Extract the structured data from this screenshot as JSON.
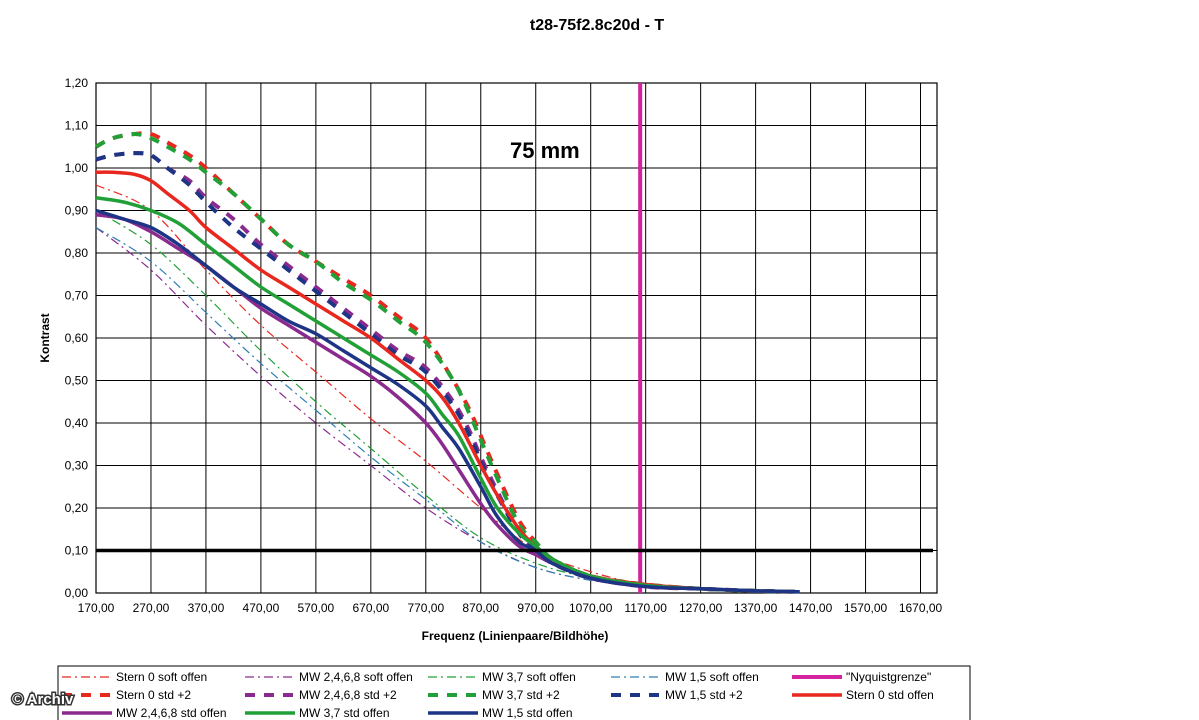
{
  "chart_data": {
    "type": "line",
    "title": "t28-75f2.8c20d - T",
    "xlabel": "Frequenz (Linienpaare/Bildhöhe)",
    "ylabel": "Kontrast",
    "xlim": [
      170,
      1700
    ],
    "ylim": [
      0,
      1.2
    ],
    "x_ticks": [
      "170,00",
      "270,00",
      "370,00",
      "470,00",
      "570,00",
      "670,00",
      "770,00",
      "870,00",
      "970,00",
      "1070,00",
      "1170,00",
      "1270,00",
      "1370,00",
      "1470,00",
      "1570,00",
      "1670,00"
    ],
    "y_ticks": [
      "0,00",
      "0,10",
      "0,20",
      "0,30",
      "0,40",
      "0,50",
      "0,60",
      "0,70",
      "0,80",
      "0,90",
      "1,00",
      "1,10",
      "1,20"
    ],
    "grid": true,
    "annotation": "75 mm",
    "reference_line_y": 0.1,
    "nyquist_x": 1160,
    "legend_position": "bottom",
    "series": [
      {
        "name": "Stern 0 soft offen",
        "color": "#e8271f",
        "style": "dashdot",
        "width": 1.2,
        "x": [
          170,
          270,
          370,
          470,
          570,
          670,
          770,
          870,
          970,
          1070,
          1170,
          1270,
          1370,
          1450
        ],
        "y": [
          0.96,
          0.9,
          0.76,
          0.63,
          0.52,
          0.41,
          0.31,
          0.2,
          0.1,
          0.05,
          0.02,
          0.01,
          0.005,
          0.003
        ]
      },
      {
        "name": "MW 2,4,6,8 soft offen",
        "color": "#8b2a8e",
        "style": "dashdot",
        "width": 1.2,
        "x": [
          170,
          270,
          370,
          470,
          570,
          670,
          770,
          870,
          970,
          1070,
          1170,
          1270,
          1370,
          1450
        ],
        "y": [
          0.86,
          0.76,
          0.63,
          0.51,
          0.4,
          0.3,
          0.2,
          0.12,
          0.06,
          0.03,
          0.015,
          0.01,
          0.005,
          0.003
        ]
      },
      {
        "name": "MW 3,7 soft offen",
        "color": "#22a038",
        "style": "dashdot",
        "width": 1.2,
        "x": [
          170,
          270,
          370,
          470,
          570,
          670,
          770,
          870,
          970,
          1070,
          1170,
          1270,
          1370,
          1450
        ],
        "y": [
          0.9,
          0.82,
          0.7,
          0.57,
          0.45,
          0.34,
          0.23,
          0.13,
          0.07,
          0.035,
          0.018,
          0.01,
          0.005,
          0.003
        ]
      },
      {
        "name": "MW 1,5 soft offen",
        "color": "#2e7fb5",
        "style": "dashdot",
        "width": 1.2,
        "x": [
          170,
          270,
          370,
          470,
          570,
          670,
          770,
          870,
          970,
          1070,
          1170,
          1270,
          1370,
          1450
        ],
        "y": [
          0.86,
          0.78,
          0.66,
          0.54,
          0.43,
          0.32,
          0.22,
          0.12,
          0.06,
          0.03,
          0.015,
          0.01,
          0.005,
          0.003
        ]
      },
      {
        "name": "\"Nyquistgrenze\"",
        "color": "#d4239f",
        "style": "solid",
        "width": 4,
        "x": [
          1160,
          1160
        ],
        "y": [
          0,
          1.2
        ]
      },
      {
        "name": "Stern 0 std +2",
        "color": "#e8271f",
        "style": "dashed",
        "width": 4,
        "x": [
          170,
          200,
          240,
          270,
          300,
          340,
          370,
          420,
          470,
          520,
          570,
          620,
          670,
          720,
          770,
          820,
          850,
          870,
          900,
          940,
          970,
          1000,
          1070,
          1170,
          1270,
          1370,
          1450
        ],
        "y": [
          1.05,
          1.07,
          1.08,
          1.08,
          1.06,
          1.03,
          1.0,
          0.94,
          0.88,
          0.82,
          0.78,
          0.74,
          0.7,
          0.65,
          0.6,
          0.5,
          0.43,
          0.37,
          0.28,
          0.17,
          0.12,
          0.08,
          0.04,
          0.02,
          0.01,
          0.005,
          0.003
        ]
      },
      {
        "name": "MW 2,4,6,8 std +2",
        "color": "#8b2a8e",
        "style": "dashed",
        "width": 4,
        "x": [
          170,
          200,
          240,
          270,
          300,
          340,
          370,
          420,
          470,
          520,
          570,
          620,
          670,
          720,
          770,
          820,
          850,
          870,
          900,
          940,
          970,
          1000,
          1070,
          1170,
          1270,
          1370,
          1450
        ],
        "y": [
          1.02,
          1.03,
          1.035,
          1.03,
          1.0,
          0.97,
          0.93,
          0.88,
          0.82,
          0.77,
          0.72,
          0.67,
          0.62,
          0.57,
          0.53,
          0.45,
          0.38,
          0.32,
          0.24,
          0.14,
          0.1,
          0.07,
          0.035,
          0.015,
          0.01,
          0.005,
          0.003
        ]
      },
      {
        "name": "MW 3,7 std +2",
        "color": "#22a038",
        "style": "dashed",
        "width": 4,
        "x": [
          170,
          200,
          240,
          270,
          300,
          340,
          370,
          420,
          470,
          520,
          570,
          620,
          670,
          720,
          770,
          820,
          850,
          870,
          900,
          940,
          970,
          1000,
          1070,
          1170,
          1270,
          1370,
          1450
        ],
        "y": [
          1.05,
          1.07,
          1.08,
          1.07,
          1.05,
          1.02,
          0.99,
          0.94,
          0.88,
          0.82,
          0.78,
          0.73,
          0.69,
          0.64,
          0.59,
          0.5,
          0.42,
          0.36,
          0.27,
          0.16,
          0.12,
          0.08,
          0.04,
          0.02,
          0.01,
          0.005,
          0.003
        ]
      },
      {
        "name": "MW 1,5 std +2",
        "color": "#1e3485",
        "style": "dashed",
        "width": 4,
        "x": [
          170,
          200,
          240,
          270,
          300,
          340,
          370,
          420,
          470,
          520,
          570,
          620,
          670,
          720,
          770,
          820,
          850,
          870,
          900,
          940,
          970,
          1000,
          1070,
          1170,
          1270,
          1370,
          1450
        ],
        "y": [
          1.02,
          1.03,
          1.035,
          1.03,
          1.0,
          0.96,
          0.92,
          0.86,
          0.81,
          0.76,
          0.71,
          0.66,
          0.61,
          0.56,
          0.52,
          0.44,
          0.37,
          0.31,
          0.23,
          0.14,
          0.1,
          0.07,
          0.035,
          0.018,
          0.01,
          0.005,
          0.003
        ]
      },
      {
        "name": "Stern 0 std offen",
        "color": "#e8271f",
        "style": "solid",
        "width": 3.5,
        "x": [
          170,
          200,
          240,
          270,
          300,
          340,
          370,
          420,
          470,
          520,
          570,
          620,
          670,
          720,
          770,
          800,
          830,
          870,
          900,
          940,
          970,
          1000,
          1070,
          1170,
          1270,
          1370,
          1450
        ],
        "y": [
          0.99,
          0.99,
          0.985,
          0.97,
          0.94,
          0.9,
          0.86,
          0.81,
          0.76,
          0.72,
          0.68,
          0.64,
          0.6,
          0.55,
          0.5,
          0.46,
          0.4,
          0.3,
          0.23,
          0.15,
          0.11,
          0.08,
          0.04,
          0.02,
          0.01,
          0.005,
          0.003
        ]
      },
      {
        "name": "MW 2,4,6,8 std offen",
        "color": "#8b2a8e",
        "style": "solid",
        "width": 3.5,
        "x": [
          170,
          220,
          270,
          320,
          370,
          420,
          470,
          520,
          570,
          620,
          670,
          720,
          770,
          800,
          830,
          870,
          900,
          940,
          970,
          1000,
          1070,
          1170,
          1270,
          1370,
          1450
        ],
        "y": [
          0.89,
          0.88,
          0.85,
          0.81,
          0.77,
          0.72,
          0.67,
          0.63,
          0.59,
          0.55,
          0.51,
          0.46,
          0.4,
          0.35,
          0.29,
          0.21,
          0.16,
          0.11,
          0.09,
          0.07,
          0.035,
          0.015,
          0.01,
          0.005,
          0.003
        ]
      },
      {
        "name": "MW 3,7 std offen",
        "color": "#22a038",
        "style": "solid",
        "width": 3.5,
        "x": [
          170,
          220,
          270,
          320,
          370,
          420,
          470,
          520,
          570,
          620,
          670,
          720,
          770,
          800,
          830,
          870,
          900,
          940,
          970,
          1000,
          1070,
          1170,
          1270,
          1370,
          1450
        ],
        "y": [
          0.93,
          0.92,
          0.9,
          0.87,
          0.82,
          0.77,
          0.72,
          0.68,
          0.64,
          0.6,
          0.56,
          0.52,
          0.47,
          0.42,
          0.37,
          0.27,
          0.2,
          0.14,
          0.11,
          0.08,
          0.04,
          0.018,
          0.01,
          0.005,
          0.003
        ]
      },
      {
        "name": "MW 1,5 std offen",
        "color": "#1e3485",
        "style": "solid",
        "width": 3.5,
        "x": [
          170,
          220,
          270,
          320,
          370,
          420,
          470,
          520,
          570,
          620,
          670,
          720,
          770,
          800,
          830,
          870,
          900,
          940,
          970,
          1000,
          1070,
          1170,
          1270,
          1370,
          1450
        ],
        "y": [
          0.9,
          0.88,
          0.86,
          0.82,
          0.77,
          0.72,
          0.68,
          0.64,
          0.61,
          0.57,
          0.53,
          0.49,
          0.44,
          0.39,
          0.34,
          0.25,
          0.18,
          0.12,
          0.1,
          0.07,
          0.035,
          0.015,
          0.01,
          0.005,
          0.003
        ]
      }
    ]
  },
  "watermark": "© Archiv"
}
